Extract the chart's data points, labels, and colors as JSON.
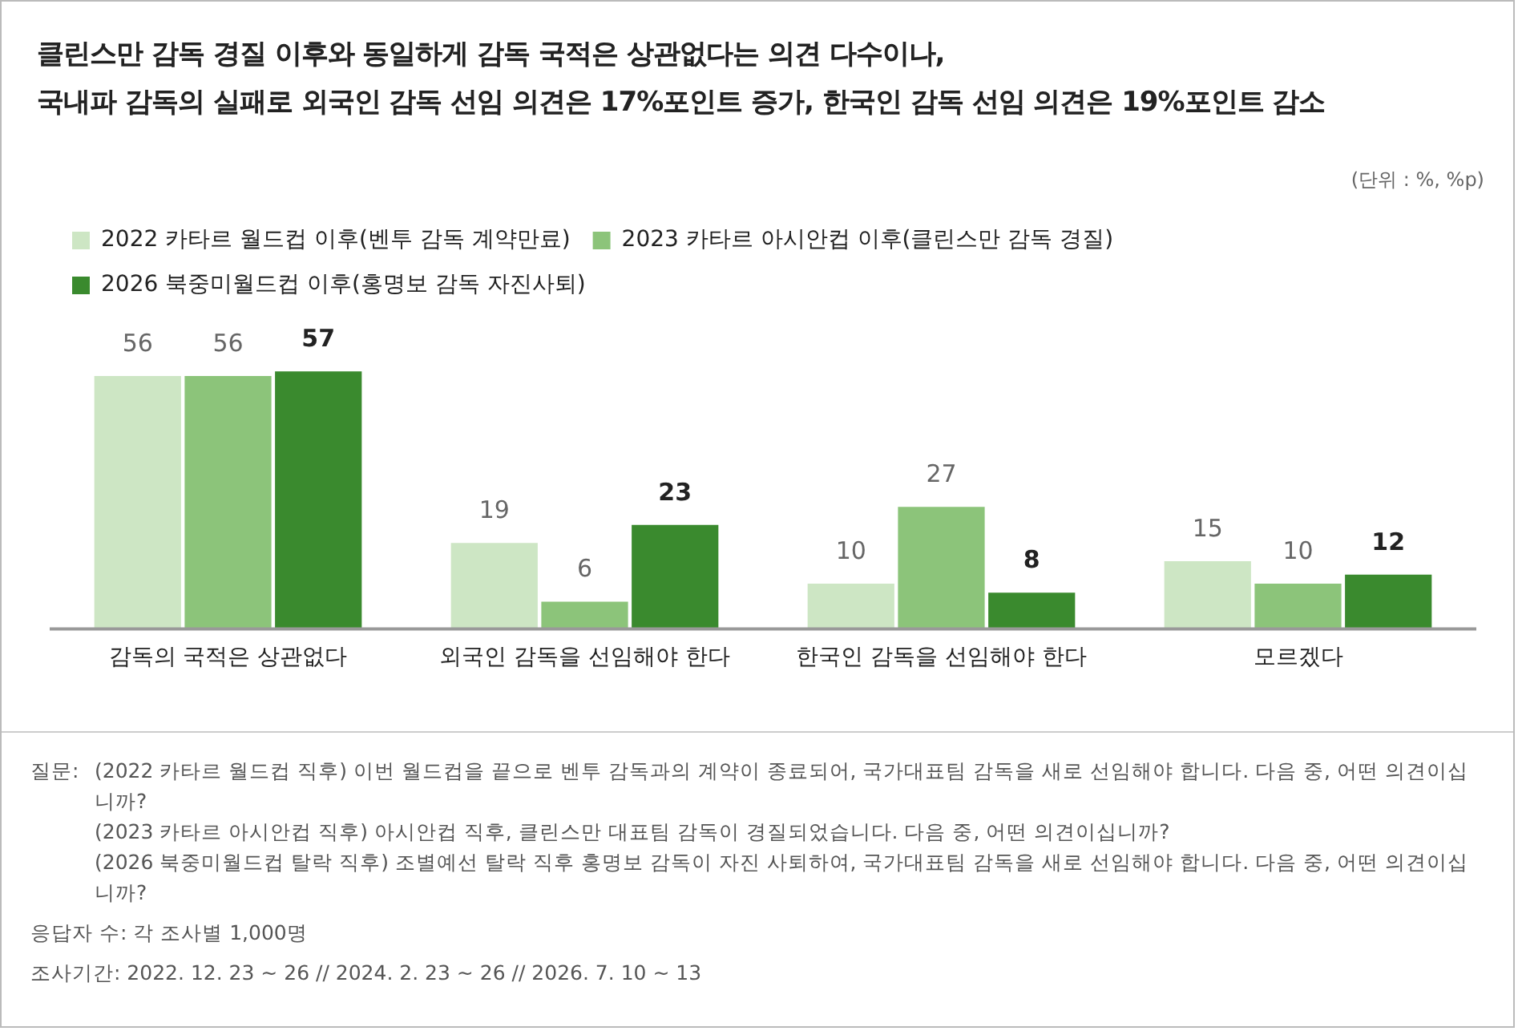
{
  "chart_data": {
    "type": "bar",
    "title": "클린스만 감독 경질 이후와 동일하게 감독 국적은 상관없다는 의견 다수이나,\n국내파 감독의 실패로 외국인 감독 선임 의견은 17%포인트 증가, 한국인 감독 선임 의견은 19%포인트 감소",
    "subtitle": "(단위 : %, %p)",
    "categories": [
      "감독의 국적은 상관없다",
      "외국인 감독을 선임해야 한다",
      "한국인 감독을 선임해야 한다",
      "모르겠다"
    ],
    "series": [
      {
        "name": "2022 카타르 월드컵 이후(벤투 감독 계약만료)",
        "color": "#cde6c4",
        "values": [
          56,
          19,
          10,
          15
        ]
      },
      {
        "name": "2023 카타르 아시안컵 이후(클린스만 감독 경질)",
        "color": "#8cc47a",
        "values": [
          56,
          6,
          27,
          10
        ]
      },
      {
        "name": "2026 북중미월드컵 이후(홍명보 감독 자진사퇴)",
        "color": "#3a8a2e",
        "values": [
          57,
          23,
          8,
          12
        ]
      }
    ],
    "data_labels": true,
    "legend": "top left",
    "grid": false,
    "annotations": [
      "질문:",
      "(2022 카타르 월드컵 직후) 이번 월드컵을 끝으로 벤투 감독과의 계약이 종료되어, 국가대표팀 감독을 새로 선임해야 합니다. 다음 중, 어떤 의견이십니까?",
      "(2023 카타르 아시안컵 직후) 아시안컵 직후, 클린스만 대표팀 감독이 경질되었습니다. 다음 중, 어떤 의견이십니까?",
      "(2026 북중미월드컵 탈락 직후) 조별예선 탈락 직후 홍명보 감독이 자진 사퇴하여, 국가대표팀 감독을 새로 선임해야 합니다. 다음 중, 어떤 의견이십니까?",
      "응답자 수: 각 조사별 1,000명",
      "조사기간: 2022. 12. 23 ~ 26 // 2024. 2. 23 ~ 26 // 2026. 7. 10 ~ 13"
    ]
  }
}
